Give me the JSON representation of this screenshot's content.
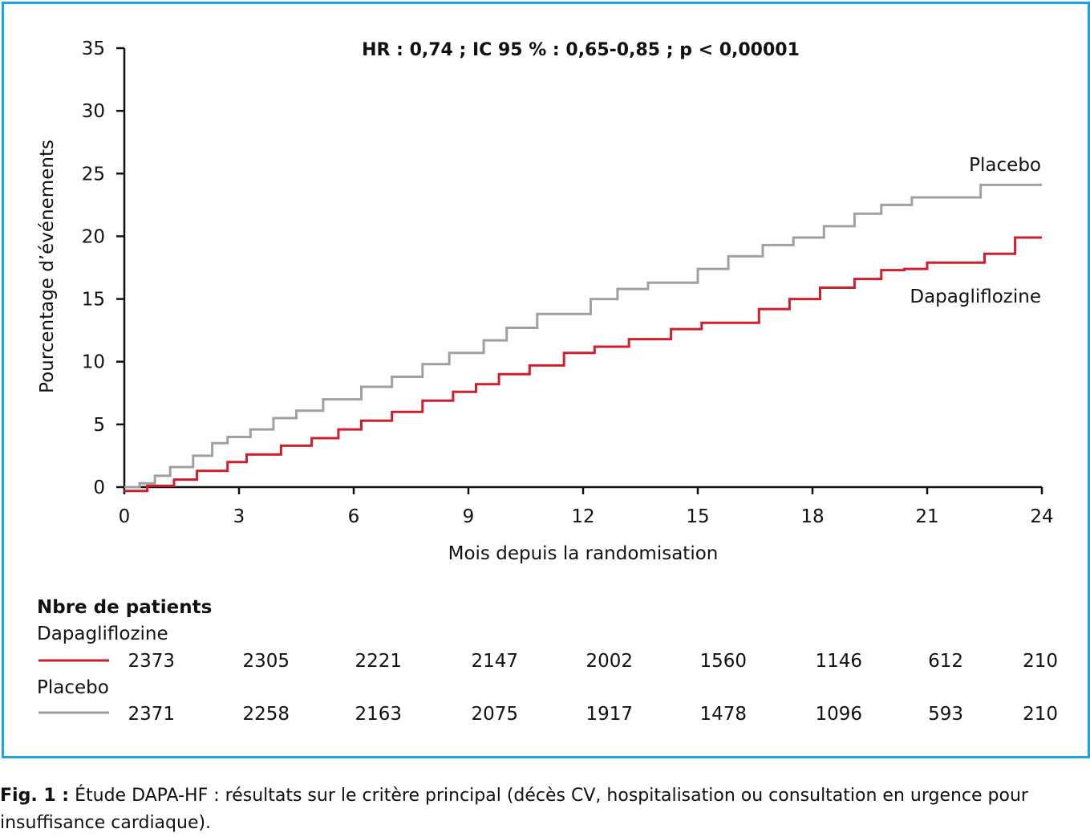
{
  "chart_data": {
    "type": "line",
    "annotation": "HR : 0,74 ; IC 95 % : 0,65-0,85 ; p < 0,00001",
    "xlabel": "Mois depuis la randomisation",
    "ylabel": "Pourcentage d’événements",
    "xlim": [
      0,
      24
    ],
    "ylim": [
      0,
      35
    ],
    "x_ticks": [
      0,
      3,
      6,
      9,
      12,
      15,
      18,
      21,
      24
    ],
    "y_ticks": [
      0,
      5,
      10,
      15,
      20,
      25,
      30,
      35
    ],
    "grid": false,
    "step": true,
    "series": [
      {
        "name": "Placebo",
        "color": "#a0a0a0",
        "x": [
          0,
          0.4,
          0.8,
          1.2,
          1.8,
          2.3,
          2.7,
          3.3,
          3.9,
          4.5,
          5.2,
          5.9,
          6.2,
          7.0,
          7.8,
          8.5,
          9.4,
          10.0,
          10.8,
          11.4,
          12.2,
          12.9,
          13.7,
          14.4,
          15.0,
          15.8,
          16.7,
          17.5,
          18.3,
          19.1,
          19.8,
          20.6,
          21.4,
          22.4,
          24.0
        ],
        "y": [
          0,
          0.3,
          0.9,
          1.6,
          2.5,
          3.5,
          4.0,
          4.6,
          5.5,
          6.1,
          7.0,
          7.0,
          8.0,
          8.8,
          9.8,
          10.7,
          11.7,
          12.7,
          13.8,
          13.8,
          15.0,
          15.8,
          16.3,
          16.3,
          17.4,
          18.4,
          19.3,
          19.9,
          20.8,
          21.8,
          22.5,
          23.1,
          23.1,
          24.1,
          24.1
        ]
      },
      {
        "name": "Dapagliflozine",
        "color": "#d01f2c",
        "x": [
          0,
          0.6,
          1.3,
          1.9,
          2.7,
          3.2,
          4.1,
          4.9,
          5.6,
          6.2,
          7.0,
          7.8,
          8.6,
          9.2,
          9.8,
          10.6,
          11.5,
          12.3,
          13.2,
          14.3,
          15.1,
          16.6,
          17.4,
          18.2,
          19.1,
          19.8,
          20.4,
          21.0,
          22.5,
          23.3,
          24.0
        ],
        "y": [
          -0.3,
          0.1,
          0.6,
          1.3,
          2.0,
          2.6,
          3.3,
          3.9,
          4.6,
          5.3,
          6.0,
          6.9,
          7.6,
          8.2,
          9.0,
          9.7,
          10.7,
          11.2,
          11.8,
          12.6,
          13.1,
          14.2,
          15.0,
          15.9,
          16.6,
          17.3,
          17.4,
          17.9,
          18.6,
          19.9,
          19.9
        ]
      }
    ]
  },
  "risk_table": {
    "title": "Nbre de patients",
    "rows": [
      {
        "name": "Dapagliflozine",
        "color": "#d01f2c",
        "values": [
          "2373",
          "2305",
          "2221",
          "2147",
          "2002",
          "1560",
          "1146",
          "612",
          "210"
        ]
      },
      {
        "name": "Placebo",
        "color": "#a0a0a0",
        "values": [
          "2371",
          "2258",
          "2163",
          "2075",
          "1917",
          "1478",
          "1096",
          "593",
          "210"
        ]
      }
    ]
  },
  "caption": {
    "label": "Fig. 1 :",
    "text": " Étude DAPA-HF : résultats sur le critère principal (décès CV, hospitalisation ou consultation en urgence pour insuffisance cardiaque)."
  },
  "colors": {
    "frame": "#1aa3e0",
    "axis": "#111111"
  }
}
